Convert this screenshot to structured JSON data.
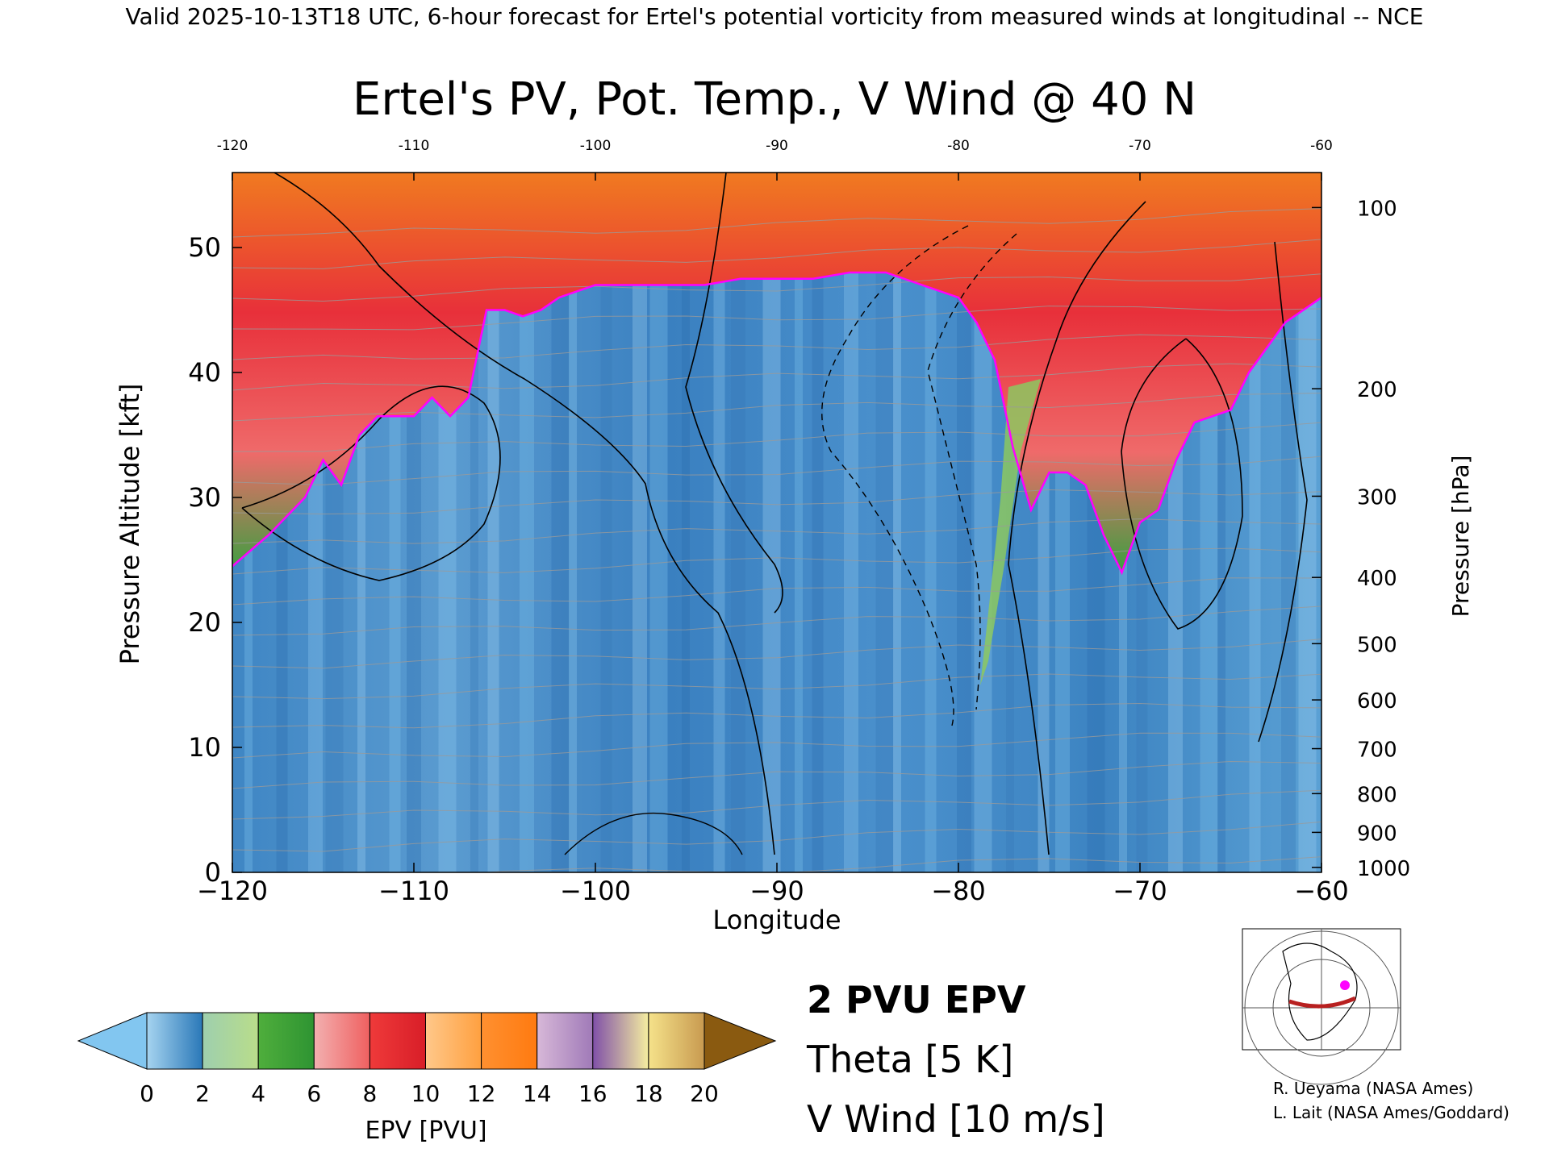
{
  "header": {
    "valid_line": "Valid 2025-10-13T18 UTC, 6-hour forecast for Ertel's potential vorticity from measured winds at longitudinal -- NCE"
  },
  "chart_data": {
    "type": "heatmap",
    "title": "Ertel's PV, Pot. Temp., V Wind @ 40 N",
    "xlabel": "Longitude",
    "ylabel_left": "Pressure Altitude [kft]",
    "ylabel_right": "Pressure [hPa]",
    "xlim": [
      -120,
      -60
    ],
    "ylim": [
      0,
      56
    ],
    "x_ticks_bottom": [
      "-120",
      "-110",
      "-100",
      "-90",
      "-80",
      "-70",
      "-60"
    ],
    "x_ticks_top": [
      "-120",
      "-110",
      "-100",
      "-90",
      "-80",
      "-70",
      "-60"
    ],
    "y_ticks_left": [
      "0",
      "10",
      "20",
      "30",
      "40",
      "50"
    ],
    "y_ticks_right": [
      {
        "label": "1000",
        "kft": 0.4
      },
      {
        "label": "900",
        "kft": 3.2
      },
      {
        "label": "800",
        "kft": 6.3
      },
      {
        "label": "700",
        "kft": 9.9
      },
      {
        "label": "600",
        "kft": 13.8
      },
      {
        "label": "500",
        "kft": 18.3
      },
      {
        "label": "400",
        "kft": 23.6
      },
      {
        "label": "300",
        "kft": 30.1
      },
      {
        "label": "200",
        "kft": 38.7
      },
      {
        "label": "100",
        "kft": 53.2
      }
    ],
    "tropopause_2pvu": [
      [
        -120,
        24.5
      ],
      [
        -118,
        27
      ],
      [
        -116,
        30
      ],
      [
        -115,
        33
      ],
      [
        -114,
        31
      ],
      [
        -113,
        35
      ],
      [
        -112,
        36.5
      ],
      [
        -110,
        36.5
      ],
      [
        -109,
        38
      ],
      [
        -108,
        36.5
      ],
      [
        -107,
        38
      ],
      [
        -106,
        45
      ],
      [
        -105,
        45
      ],
      [
        -104,
        44.5
      ],
      [
        -103,
        45
      ],
      [
        -102,
        46
      ],
      [
        -100,
        47
      ],
      [
        -98,
        47
      ],
      [
        -96,
        47
      ],
      [
        -94,
        47
      ],
      [
        -92,
        47.5
      ],
      [
        -90,
        47.5
      ],
      [
        -88,
        47.5
      ],
      [
        -86,
        48
      ],
      [
        -84,
        48
      ],
      [
        -82,
        47
      ],
      [
        -80,
        46
      ],
      [
        -79,
        44
      ],
      [
        -78,
        41
      ],
      [
        -77,
        34
      ],
      [
        -76,
        29
      ],
      [
        -75,
        32
      ],
      [
        -74,
        32
      ],
      [
        -73,
        31
      ],
      [
        -72,
        27
      ],
      [
        -71,
        24
      ],
      [
        -70,
        28
      ],
      [
        -69,
        29
      ],
      [
        -68,
        33
      ],
      [
        -67,
        36
      ],
      [
        -66,
        36.5
      ],
      [
        -65,
        37
      ],
      [
        -64,
        40
      ],
      [
        -62,
        44
      ],
      [
        -60,
        46
      ]
    ],
    "colorbar": {
      "label": "EPV [PVU]",
      "ticks": [
        "0",
        "2",
        "4",
        "6",
        "8",
        "10",
        "12",
        "14",
        "16",
        "18",
        "20"
      ],
      "range": [
        0,
        20
      ],
      "bins": [
        {
          "from": 0,
          "to": 2,
          "colors": [
            "#a6d4f0",
            "#2a78b8"
          ]
        },
        {
          "from": 2,
          "to": 4,
          "colors": [
            "#9ecfae",
            "#b9dd8a"
          ]
        },
        {
          "from": 4,
          "to": 6,
          "colors": [
            "#4fae3c",
            "#2e9432"
          ]
        },
        {
          "from": 6,
          "to": 8,
          "colors": [
            "#f3b0b0",
            "#ef6060"
          ]
        },
        {
          "from": 8,
          "to": 10,
          "colors": [
            "#ef3a3a",
            "#d81e28"
          ]
        },
        {
          "from": 10,
          "to": 12,
          "colors": [
            "#ffc88a",
            "#ffa040"
          ]
        },
        {
          "from": 12,
          "to": 14,
          "colors": [
            "#ff9030",
            "#ff7a10"
          ]
        },
        {
          "from": 14,
          "to": 16,
          "colors": [
            "#d7b8d8",
            "#a07ab8"
          ]
        },
        {
          "from": 16,
          "to": 18,
          "colors": [
            "#8050a8",
            "#f5eea0"
          ]
        },
        {
          "from": 18,
          "to": 20,
          "colors": [
            "#f5e28a",
            "#c89a50"
          ]
        }
      ],
      "under_color": "#82c6f0",
      "over_color": "#8a5a10"
    },
    "legend": {
      "items": [
        {
          "label": "2 PVU EPV",
          "color": "#ff00ff"
        },
        {
          "label": "Theta [5 K]",
          "color": "#a0a0a0"
        },
        {
          "label": "V Wind [10 m/s]",
          "color": "#000000"
        }
      ]
    },
    "credits": [
      "R. Ueyama (NASA Ames)",
      "L. Lait (NASA Ames/Goddard)"
    ]
  }
}
